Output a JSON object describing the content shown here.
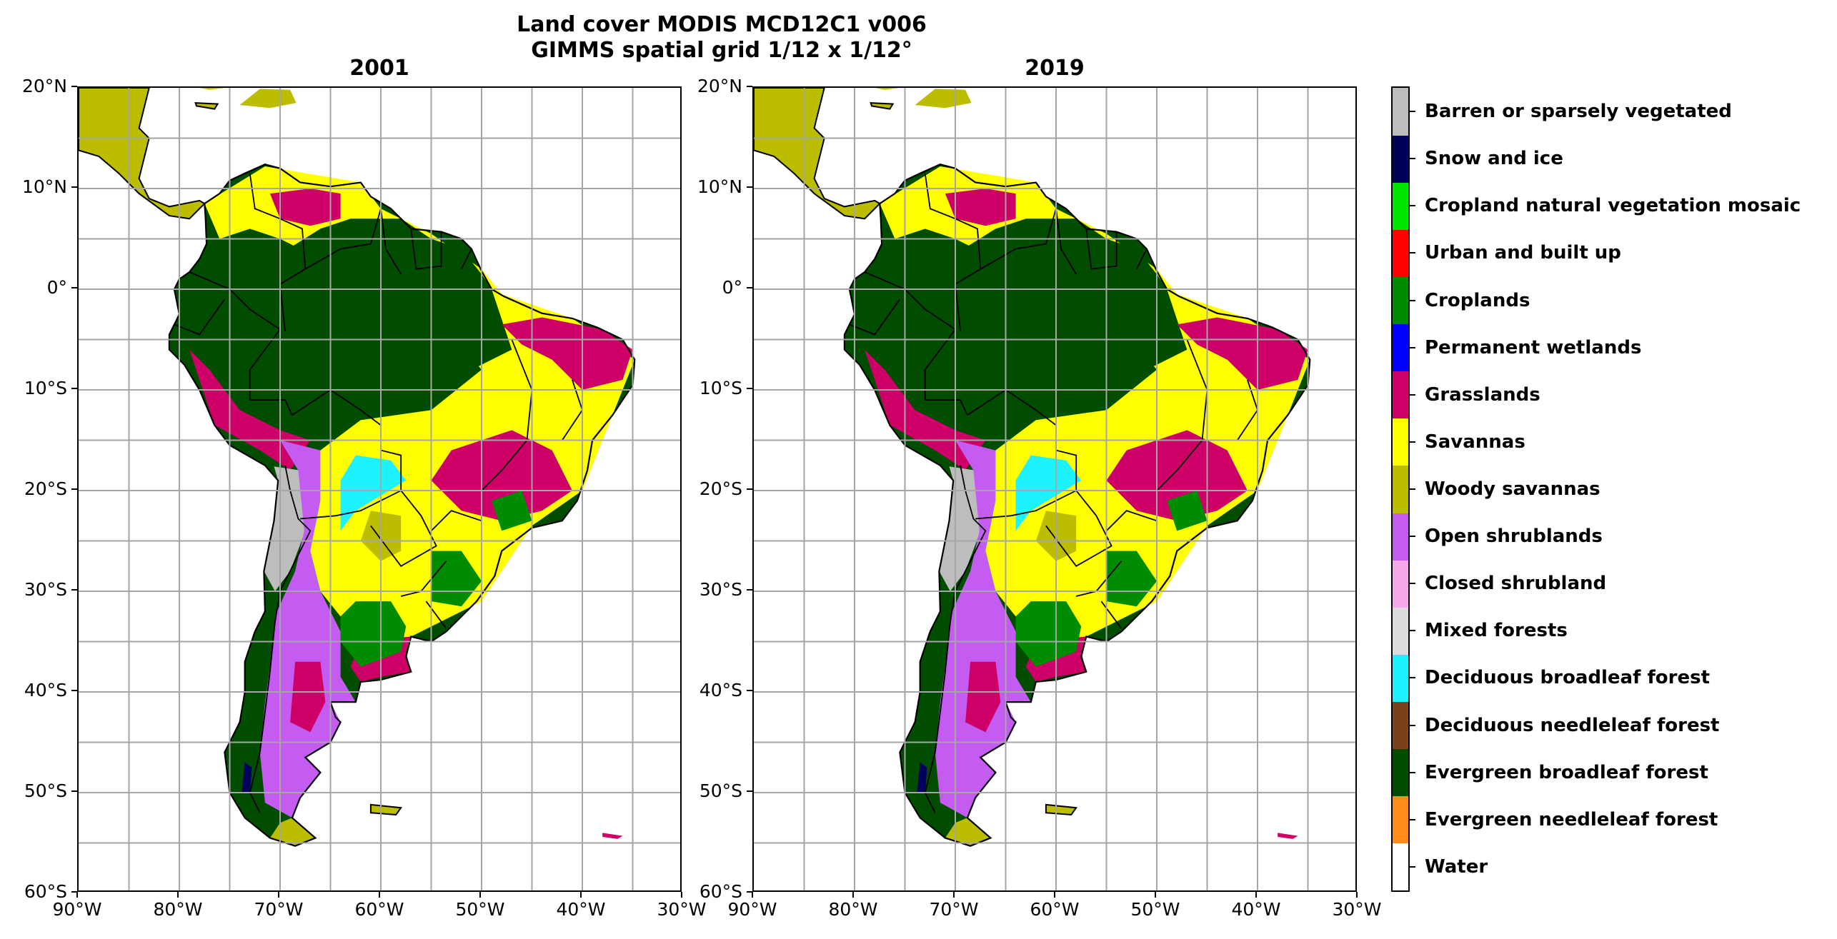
{
  "figure": {
    "title_line1": "Land cover MODIS MCD12C1 v006",
    "title_line2": "GIMMS spatial grid 1/12 x 1/12°"
  },
  "panels": [
    {
      "title": "2001"
    },
    {
      "title": "2019"
    }
  ],
  "axes": {
    "lat_ticks": [
      "20°N",
      "10°N",
      "0°",
      "10°S",
      "20°S",
      "30°S",
      "40°S",
      "50°S",
      "60°S"
    ],
    "lon_ticks": [
      "90°W",
      "80°W",
      "70°W",
      "60°W",
      "50°W",
      "40°W",
      "30°W"
    ],
    "extent": {
      "lon_min": -90,
      "lon_max": -30,
      "lat_min": -60,
      "lat_max": 20
    },
    "grid": "on, 5° spacing"
  },
  "legend": {
    "placement": "right colorbar",
    "classes": [
      {
        "label": "Water",
        "color": "#ffffff"
      },
      {
        "label": "Evergreen needleleaf forest",
        "color": "#ff8c1a"
      },
      {
        "label": "Evergreen broadleaf forest",
        "color": "#004d00"
      },
      {
        "label": "Deciduous needleleaf forest",
        "color": "#7a4219"
      },
      {
        "label": "Deciduous broadleaf forest",
        "color": "#1ff2ff"
      },
      {
        "label": "Mixed forests",
        "color": "#dcdcdc"
      },
      {
        "label": "Closed shrubland",
        "color": "#f5a8ec"
      },
      {
        "label": "Open shrublands",
        "color": "#c45cf2"
      },
      {
        "label": "Woody savannas",
        "color": "#bdbd00"
      },
      {
        "label": "Savannas",
        "color": "#ffff00"
      },
      {
        "label": "Grasslands",
        "color": "#cc0066"
      },
      {
        "label": "Permanent wetlands",
        "color": "#0000ff"
      },
      {
        "label": "Croplands",
        "color": "#008c00"
      },
      {
        "label": "Urban and built up",
        "color": "#ff0000"
      },
      {
        "label": "Cropland natural vegetation mosaic",
        "color": "#00e600"
      },
      {
        "label": "Snow and ice",
        "color": "#00005c"
      },
      {
        "label": "Barren or sparsely vegetated",
        "color": "#bdbdbd"
      }
    ]
  }
}
